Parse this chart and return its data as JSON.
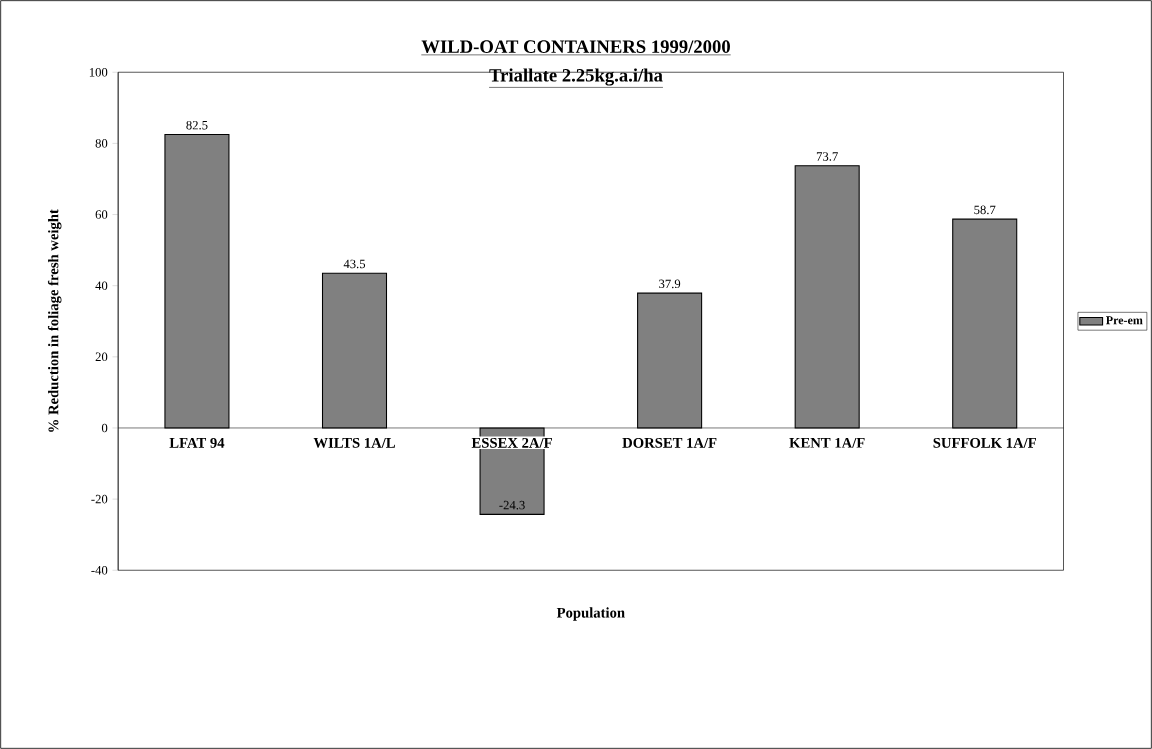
{
  "chart_data": {
    "type": "bar",
    "title": "WILD-OAT CONTAINERS 1999/2000",
    "subtitle": "Triallate 2.25kg.a.i/ha",
    "xlabel": "Population",
    "ylabel": "% Reduction in foliage fresh weight",
    "categories": [
      "LFAT 94",
      "WILTS 1A/L",
      "ESSEX 2A/F",
      "DORSET 1A/F",
      "KENT 1A/F",
      "SUFFOLK 1A/F"
    ],
    "series": [
      {
        "name": "Pre-em",
        "color": "#808080",
        "values": [
          82.5,
          43.5,
          -24.3,
          37.9,
          73.7,
          58.7
        ]
      }
    ],
    "ylim": [
      -40,
      100
    ],
    "yticks": [
      -40,
      -20,
      0,
      20,
      40,
      60,
      80,
      100
    ],
    "data_labels": true,
    "legend": "right",
    "grid": false
  }
}
